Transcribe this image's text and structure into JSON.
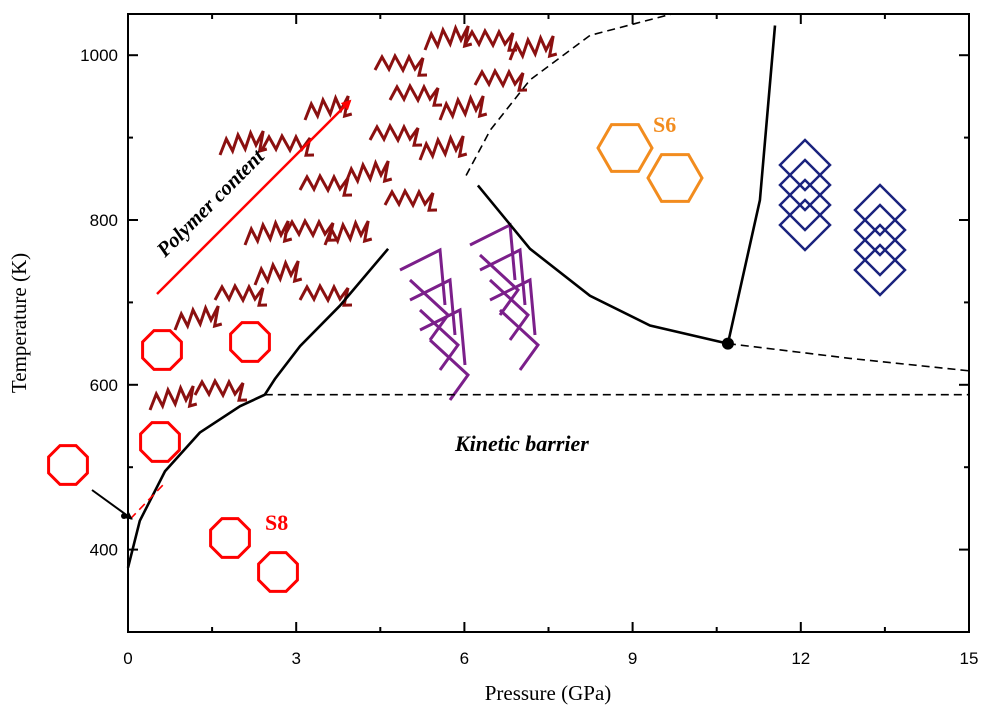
{
  "chart_data": {
    "type": "line",
    "x_label": "Pressure (GPa)",
    "y_label": "Temperature (K)",
    "xlim": [
      0,
      15
    ],
    "ylim": [
      300,
      1050
    ],
    "xticks": [
      0,
      3,
      6,
      9,
      12,
      15
    ],
    "yticks": [
      400,
      600,
      800,
      1000
    ],
    "xminor_ticks": [
      1.5,
      4.5,
      7.5,
      10.5,
      13.5
    ],
    "yminor_ticks": [
      500,
      700,
      900
    ],
    "annotations": [
      "Polymer content",
      "S6",
      "S8",
      "Kinetic barrier"
    ],
    "series": [
      {
        "color": "#000000",
        "style": "solid",
        "x": [
          0,
          0.21,
          0.66,
          1.28,
          2.0,
          2.44,
          2.62,
          3.07,
          3.78,
          4.64
        ],
        "values": [
          378,
          435,
          495,
          542,
          574,
          588,
          607,
          647,
          696,
          765
        ]
      },
      {
        "color": "#ff0000",
        "style": "dashed",
        "x": [
          0.04,
          0.66
        ],
        "values": [
          437,
          481
        ]
      },
      {
        "color": "#000000",
        "style": "dashed",
        "x": [
          2.44,
          15
        ],
        "values": [
          588,
          588
        ]
      },
      {
        "color": "#000000",
        "style": "solid",
        "x": [
          6.24,
          7.17,
          8.24,
          9.31,
          10.7
        ],
        "values": [
          842,
          765,
          708,
          672,
          650
        ]
      },
      {
        "color": "#000000",
        "style": "dashed",
        "x": [
          10.7,
          12.88,
          15
        ],
        "values": [
          650,
          632,
          617
        ]
      },
      {
        "color": "#000000",
        "style": "solid",
        "x": [
          10.7,
          11.27,
          11.54
        ],
        "values": [
          650,
          824,
          1036
        ]
      },
      {
        "color": "#000000",
        "style": "dashed",
        "x": [
          6.03,
          6.46,
          7.17,
          8.24,
          9.7
        ],
        "values": [
          854,
          909,
          970,
          1024,
          1050
        ]
      },
      {
        "color": "#000000",
        "style": "marker",
        "x": [
          10.7
        ],
        "values": [
          650
        ]
      }
    ]
  }
}
